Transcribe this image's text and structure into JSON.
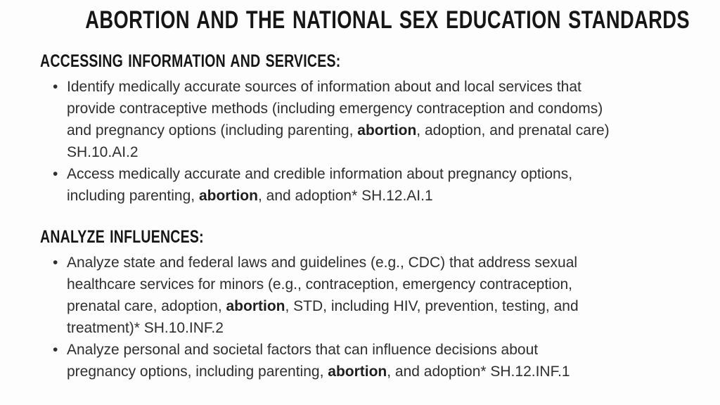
{
  "colors": {
    "background": "#fdfdfd",
    "heading_text": "#161616",
    "body_text": "#2e2e2e"
  },
  "title": "ABORTION AND THE NATIONAL SEX EDUCATION STANDARDS",
  "sections": [
    {
      "heading": "ACCESSING INFORMATION AND SERVICES:",
      "bullets": [
        {
          "segments": [
            {
              "text": "Identify medically accurate sources of information about and local services that\nprovide contraceptive methods (including emergency contraception and condoms)\nand pregnancy options (including parenting, ",
              "bold": false
            },
            {
              "text": "abortion",
              "bold": true
            },
            {
              "text": ", adoption, and prenatal care)\nSH.10.AI.2",
              "bold": false
            }
          ]
        },
        {
          "segments": [
            {
              "text": "Access medically accurate and credible information about pregnancy options,\nincluding parenting, ",
              "bold": false
            },
            {
              "text": "abortion",
              "bold": true
            },
            {
              "text": ", and adoption* SH.12.AI.1",
              "bold": false
            }
          ]
        }
      ]
    },
    {
      "heading": "ANALYZE INFLUENCES:",
      "bullets": [
        {
          "segments": [
            {
              "text": "Analyze state and federal laws and guidelines (e.g., CDC) that address sexual\nhealthcare services for minors (e.g., contraception, emergency contraception,\nprenatal care, adoption, ",
              "bold": false
            },
            {
              "text": "abortion",
              "bold": true
            },
            {
              "text": ", STD, including HIV, prevention, testing, and\ntreatment)* SH.10.INF.2",
              "bold": false
            }
          ]
        },
        {
          "segments": [
            {
              "text": "Analyze personal and societal factors that can influence decisions about\npregnancy options, including parenting, ",
              "bold": false
            },
            {
              "text": "abortion",
              "bold": true
            },
            {
              "text": ", and adoption* SH.12.INF.1",
              "bold": false
            }
          ]
        }
      ]
    }
  ]
}
